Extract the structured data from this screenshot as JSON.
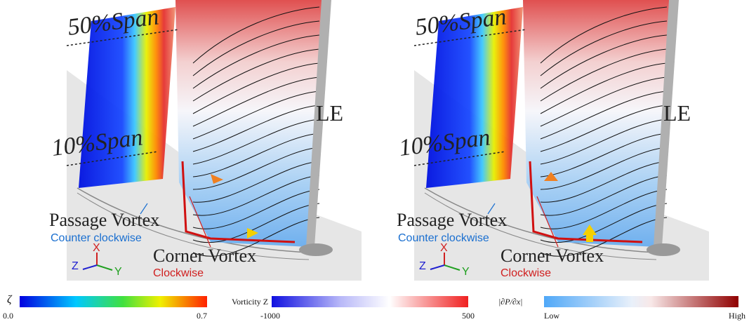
{
  "panels": [
    {
      "span_top": "50%Span",
      "span_bottom": "10%Span",
      "edge": "LE",
      "passage_vortex": "Passage Vortex",
      "passage_dir": "Counter clockwise",
      "corner_vortex": "Corner Vortex",
      "corner_dir": "Clockwise",
      "axis_x": "X",
      "axis_y": "Y",
      "axis_z": "Z"
    },
    {
      "span_top": "50%Span",
      "span_bottom": "10%Span",
      "edge": "LE",
      "passage_vortex": "Passage Vortex",
      "passage_dir": "Counter clockwise",
      "corner_vortex": "Corner Vortex",
      "corner_dir": "Clockwise",
      "axis_x": "X",
      "axis_y": "Y",
      "axis_z": "Z"
    }
  ],
  "colorbars": [
    {
      "title": "ζ",
      "min": "0.0",
      "max": "0.7"
    },
    {
      "title": "Vorticity Z",
      "min": "-1000",
      "max": "500"
    },
    {
      "title": "|∂P/∂x|",
      "min": "Low",
      "max": "High"
    }
  ]
}
